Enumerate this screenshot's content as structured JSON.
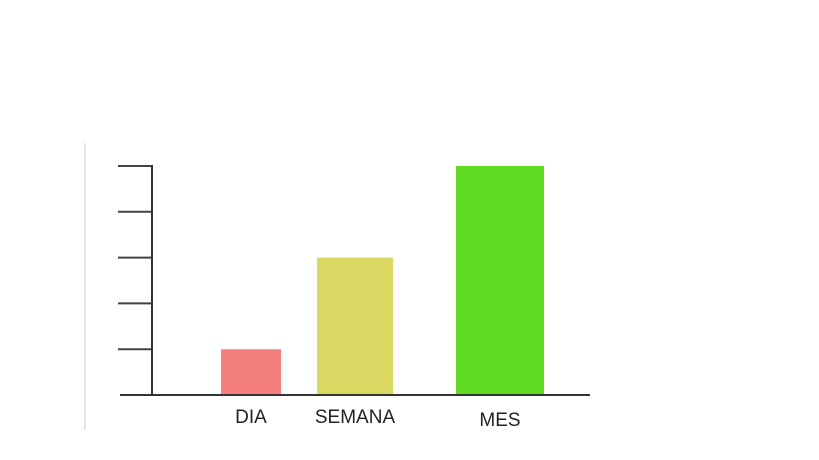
{
  "chart_data": {
    "type": "bar",
    "categories": [
      "DIA",
      "SEMANA",
      "MES"
    ],
    "values": [
      1,
      3,
      5
    ],
    "colors": [
      "#f57f7d",
      "#d9d862",
      "#5fdc22"
    ],
    "ylim": [
      0,
      5
    ],
    "grid": false,
    "legend": "none"
  }
}
